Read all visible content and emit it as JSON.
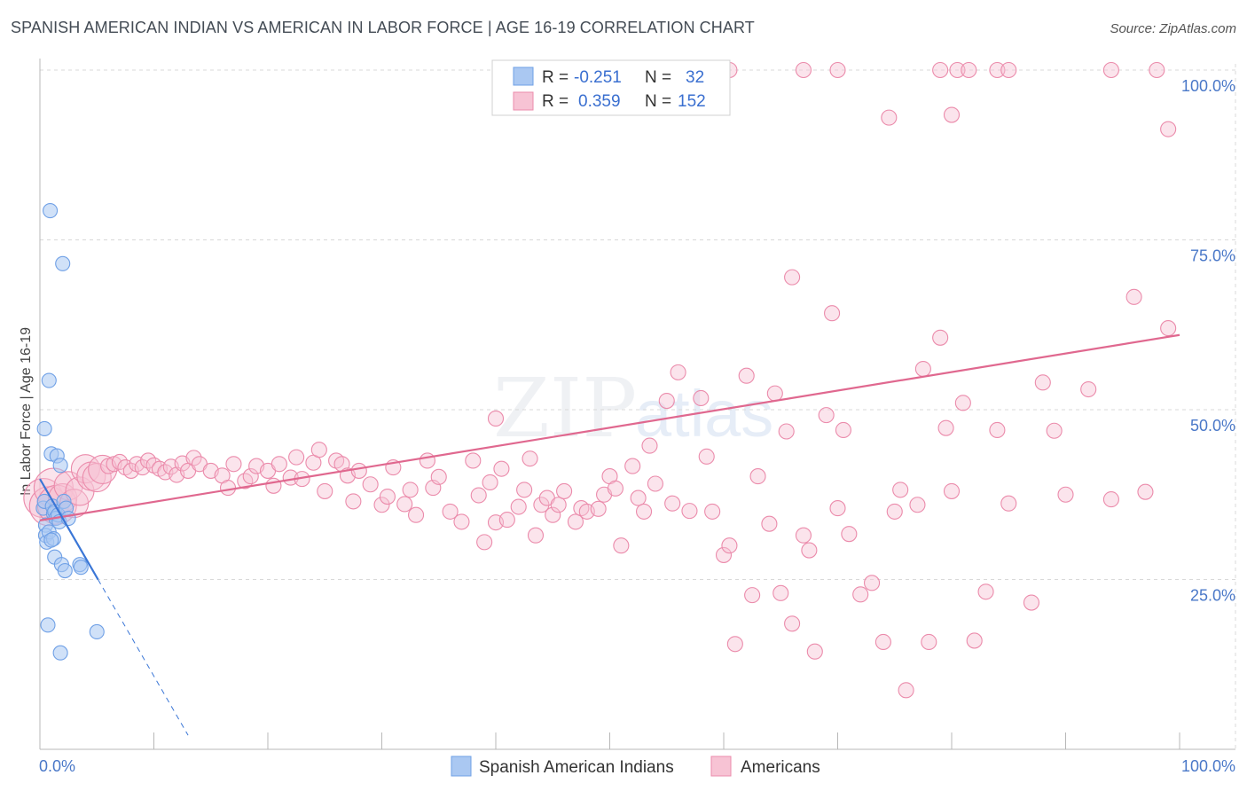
{
  "title": "SPANISH AMERICAN INDIAN VS AMERICAN IN LABOR FORCE | AGE 16-19 CORRELATION CHART",
  "source": "Source: ZipAtlas.com",
  "watermark": {
    "zip": "ZIP",
    "atlas": "atlas"
  },
  "colors": {
    "blue": "#6fa0e6",
    "blue_fill": "#aac8f2",
    "blue_line": "#3a76d6",
    "pink": "#eb8bab",
    "pink_fill": "#f7c3d4",
    "pink_line": "#e0688f",
    "grid": "#d9d9d9",
    "axis_text": "#4a78c8"
  },
  "legend": {
    "rows": [
      {
        "r_label": "R = ",
        "r_value": "-0.251",
        "n_label": "N = ",
        "n_value": "32"
      },
      {
        "r_label": "R = ",
        "r_value": "0.359",
        "n_label": "N = ",
        "n_value": "152"
      }
    ]
  },
  "chart_data": {
    "type": "scatter",
    "title": "SPANISH AMERICAN INDIAN VS AMERICAN IN LABOR FORCE | AGE 16-19 CORRELATION CHART",
    "xlabel": "",
    "ylabel": "In Labor Force | Age 16-19",
    "xlim": [
      0,
      100
    ],
    "ylim": [
      0,
      100
    ],
    "x_tick_labels": [
      "0.0%",
      "100.0%"
    ],
    "y_ticks": [
      25,
      50,
      75,
      100
    ],
    "y_tick_labels": [
      "25.0%",
      "50.0%",
      "75.0%",
      "100.0%"
    ],
    "grid": true,
    "legend_position": "bottom-center",
    "series": [
      {
        "name": "Spanish American Indians",
        "R": -0.251,
        "N": 32,
        "trend": {
          "x0": 0,
          "y0": 39.8,
          "x1": 5.1,
          "y1": 25.0,
          "dashed_to_x": 13.0
        },
        "points": [
          [
            0.3,
            35.5
          ],
          [
            0.4,
            36.5
          ],
          [
            0.5,
            33.0
          ],
          [
            0.5,
            31.5
          ],
          [
            0.6,
            30.5
          ],
          [
            0.4,
            47.2
          ],
          [
            0.7,
            18.3
          ],
          [
            0.8,
            32.0
          ],
          [
            0.9,
            79.3
          ],
          [
            0.8,
            54.3
          ],
          [
            1.0,
            43.5
          ],
          [
            1.1,
            35.8
          ],
          [
            1.2,
            34.7
          ],
          [
            1.2,
            31.0
          ],
          [
            1.3,
            28.3
          ],
          [
            1.3,
            35.0
          ],
          [
            1.4,
            34.0
          ],
          [
            1.5,
            43.2
          ],
          [
            1.6,
            34.5
          ],
          [
            1.7,
            33.5
          ],
          [
            1.8,
            41.8
          ],
          [
            1.8,
            14.2
          ],
          [
            1.9,
            27.2
          ],
          [
            2.0,
            71.5
          ],
          [
            2.1,
            36.5
          ],
          [
            2.2,
            26.3
          ],
          [
            2.3,
            35.5
          ],
          [
            2.5,
            34.0
          ],
          [
            3.5,
            27.2
          ],
          [
            3.6,
            26.8
          ],
          [
            5.0,
            17.3
          ],
          [
            1.0,
            30.8
          ]
        ]
      },
      {
        "name": "Americans",
        "R": 0.359,
        "N": 152,
        "trend": {
          "x0": 0,
          "y0": 33.7,
          "x1": 100,
          "y1": 61.0
        },
        "points": [
          [
            0.3,
            37.0
          ],
          [
            0.8,
            35.8
          ],
          [
            1.2,
            38.5
          ],
          [
            1.5,
            36.0
          ],
          [
            2.0,
            37.0
          ],
          [
            2.5,
            38.8
          ],
          [
            3.0,
            36.2
          ],
          [
            3.5,
            38.0
          ],
          [
            4.0,
            41.3
          ],
          [
            4.5,
            40.2
          ],
          [
            5.0,
            40.0
          ],
          [
            5.5,
            41.2
          ],
          [
            6.0,
            41.7
          ],
          [
            6.5,
            42.0
          ],
          [
            7.0,
            42.3
          ],
          [
            7.5,
            41.5
          ],
          [
            8.0,
            41.0
          ],
          [
            8.5,
            42.0
          ],
          [
            9.0,
            41.5
          ],
          [
            9.5,
            42.5
          ],
          [
            10.0,
            41.8
          ],
          [
            10.5,
            41.3
          ],
          [
            11.0,
            40.8
          ],
          [
            11.5,
            41.6
          ],
          [
            12.0,
            40.4
          ],
          [
            12.5,
            42.1
          ],
          [
            13.0,
            41.0
          ],
          [
            13.5,
            42.9
          ],
          [
            14.0,
            42.0
          ],
          [
            15.0,
            41.0
          ],
          [
            16.0,
            40.3
          ],
          [
            16.5,
            38.5
          ],
          [
            17.0,
            42.0
          ],
          [
            18.0,
            39.5
          ],
          [
            18.5,
            40.2
          ],
          [
            19.0,
            41.7
          ],
          [
            20.0,
            41.0
          ],
          [
            20.5,
            38.8
          ],
          [
            21.0,
            42.0
          ],
          [
            22.0,
            40.0
          ],
          [
            22.5,
            43.0
          ],
          [
            23.0,
            39.8
          ],
          [
            24.0,
            42.2
          ],
          [
            24.5,
            44.1
          ],
          [
            25.0,
            38.0
          ],
          [
            26.0,
            42.5
          ],
          [
            26.5,
            42.0
          ],
          [
            27.0,
            40.3
          ],
          [
            27.5,
            36.5
          ],
          [
            28.0,
            41.0
          ],
          [
            29.0,
            39.0
          ],
          [
            30.0,
            36.0
          ],
          [
            30.5,
            37.2
          ],
          [
            31.0,
            41.5
          ],
          [
            32.0,
            36.1
          ],
          [
            32.5,
            38.2
          ],
          [
            33.0,
            34.5
          ],
          [
            34.0,
            42.5
          ],
          [
            34.5,
            38.5
          ],
          [
            35.0,
            40.1
          ],
          [
            36.0,
            35.0
          ],
          [
            37.0,
            33.5
          ],
          [
            38.0,
            42.5
          ],
          [
            38.5,
            37.4
          ],
          [
            39.0,
            30.5
          ],
          [
            39.5,
            39.3
          ],
          [
            40.0,
            33.4
          ],
          [
            40.5,
            41.3
          ],
          [
            41.0,
            33.8
          ],
          [
            42.0,
            35.7
          ],
          [
            42.5,
            38.2
          ],
          [
            43.0,
            42.8
          ],
          [
            43.5,
            31.5
          ],
          [
            44.0,
            36.0
          ],
          [
            44.5,
            37.0
          ],
          [
            45.0,
            34.5
          ],
          [
            45.5,
            36.0
          ],
          [
            46.0,
            38.0
          ],
          [
            47.0,
            33.5
          ],
          [
            47.5,
            35.5
          ],
          [
            48.0,
            35.0
          ],
          [
            49.0,
            35.4
          ],
          [
            49.5,
            37.5
          ],
          [
            50.0,
            40.2
          ],
          [
            50.5,
            38.4
          ],
          [
            51.0,
            30.0
          ],
          [
            52.0,
            41.7
          ],
          [
            52.5,
            37.0
          ],
          [
            53.0,
            35.0
          ],
          [
            53.5,
            44.7
          ],
          [
            54.0,
            39.1
          ],
          [
            55.0,
            51.3
          ],
          [
            55.5,
            36.2
          ],
          [
            56.0,
            55.5
          ],
          [
            57.0,
            35.1
          ],
          [
            58.0,
            51.7
          ],
          [
            58.5,
            43.1
          ],
          [
            59.0,
            35.0
          ],
          [
            60.0,
            28.6
          ],
          [
            60.5,
            30.0
          ],
          [
            61.0,
            15.5
          ],
          [
            62.0,
            55.0
          ],
          [
            62.5,
            22.7
          ],
          [
            63.0,
            40.2
          ],
          [
            64.0,
            33.2
          ],
          [
            64.5,
            52.4
          ],
          [
            65.0,
            23.0
          ],
          [
            65.5,
            46.8
          ],
          [
            66.0,
            18.5
          ],
          [
            67.0,
            31.5
          ],
          [
            67.5,
            29.3
          ],
          [
            68.0,
            14.4
          ],
          [
            69.0,
            49.2
          ],
          [
            70.0,
            35.5
          ],
          [
            70.5,
            47.0
          ],
          [
            71.0,
            31.7
          ],
          [
            72.0,
            22.8
          ],
          [
            73.0,
            24.5
          ],
          [
            74.0,
            15.8
          ],
          [
            75.0,
            35.0
          ],
          [
            75.5,
            38.2
          ],
          [
            76.0,
            8.7
          ],
          [
            77.0,
            36.0
          ],
          [
            77.5,
            56.0
          ],
          [
            78.0,
            15.8
          ],
          [
            79.0,
            60.6
          ],
          [
            79.5,
            47.3
          ],
          [
            80.0,
            38.0
          ],
          [
            81.0,
            51.0
          ],
          [
            82.0,
            16.0
          ],
          [
            83.0,
            23.2
          ],
          [
            84.0,
            47.0
          ],
          [
            85.0,
            36.2
          ],
          [
            87.0,
            21.6
          ],
          [
            88.0,
            54.0
          ],
          [
            89.0,
            46.9
          ],
          [
            90.0,
            37.5
          ],
          [
            92.0,
            53.0
          ],
          [
            94.0,
            36.8
          ],
          [
            96.0,
            66.6
          ],
          [
            97.0,
            37.9
          ],
          [
            99.0,
            62.0
          ],
          [
            66.0,
            69.5
          ],
          [
            69.5,
            64.2
          ],
          [
            67.0,
            100.0
          ],
          [
            80.0,
            93.4
          ],
          [
            80.5,
            100.0
          ],
          [
            81.5,
            100.0
          ],
          [
            84.0,
            100.0
          ],
          [
            85.0,
            100.0
          ],
          [
            94.0,
            100.0
          ],
          [
            98.0,
            100.0
          ],
          [
            99.0,
            91.3
          ],
          [
            60.5,
            100.0
          ],
          [
            74.5,
            93.0
          ],
          [
            79.0,
            100.0
          ],
          [
            40.0,
            48.7
          ],
          [
            70.0,
            100.0
          ]
        ]
      }
    ]
  }
}
